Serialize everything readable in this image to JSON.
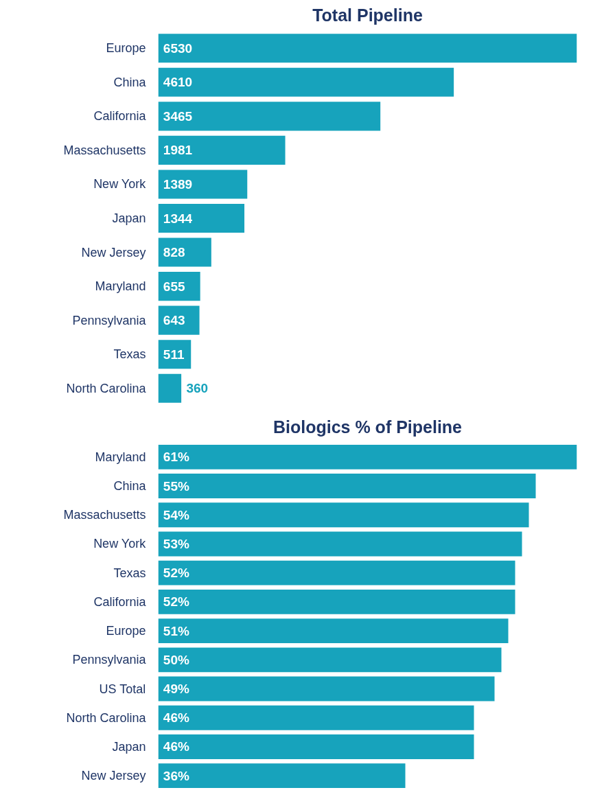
{
  "chart_data": [
    {
      "type": "bar",
      "title": "Total Pipeline",
      "orientation": "horizontal",
      "data_labels": true,
      "grid": false,
      "tick_labels": "y",
      "categories": [
        "Europe",
        "China",
        "California",
        "Massachusetts",
        "New York",
        "Japan",
        "New Jersey",
        "Maryland",
        "Pennsylvania",
        "Texas",
        "North Carolina"
      ],
      "series": [
        {
          "color": "#17a3bc",
          "values": [
            6530,
            4610,
            3465,
            1981,
            1389,
            1344,
            828,
            655,
            643,
            511,
            360
          ]
        }
      ]
    },
    {
      "type": "bar",
      "title": "Biologics % of Pipeline",
      "orientation": "horizontal",
      "grid": false,
      "tick_labels": "y",
      "categories": [
        "Maryland",
        "China",
        "Massachusetts",
        "New York",
        "Texas",
        "California",
        "Europe",
        "Pennsylvania",
        "US Total",
        "North Carolina",
        "Japan",
        "New Jersey"
      ],
      "series": [
        {
          "color": "#17a3bc",
          "values": [
            61,
            55,
            54,
            53,
            52,
            52,
            51,
            50,
            49,
            46,
            46,
            36
          ],
          "value_labels": [
            "61%",
            "55%",
            "54%",
            "53%",
            "52%",
            "52%",
            "51%",
            "50%",
            "49%",
            "46%",
            "46%",
            "36%"
          ]
        }
      ]
    }
  ]
}
